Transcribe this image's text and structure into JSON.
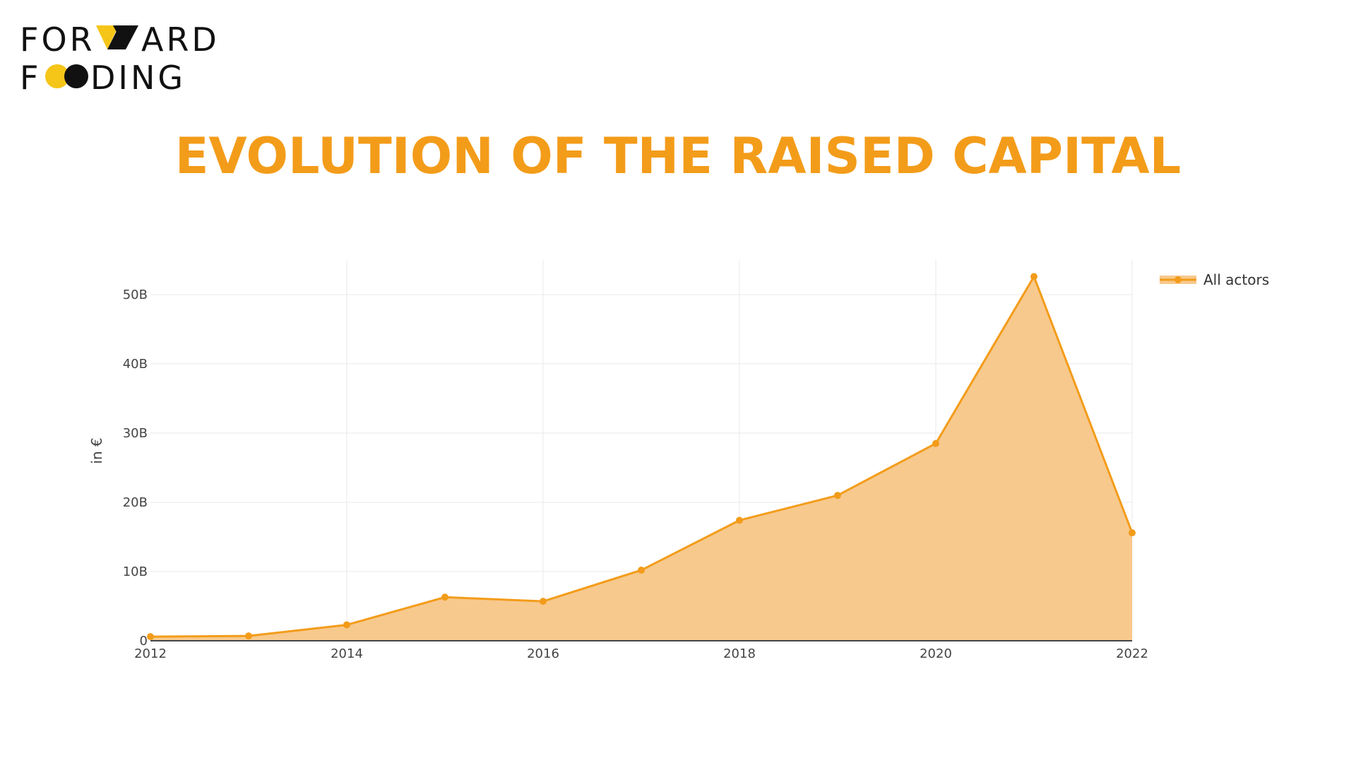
{
  "logo": {
    "line1_a": "FOR",
    "line1_b": "ARD",
    "line2_a": "F",
    "line2_b": "DING",
    "colors": {
      "yellow": "#f5c518",
      "black": "#111111"
    }
  },
  "title": "EVOLUTION OF THE RAISED CAPITAL",
  "colors": {
    "accent": "#f39c1a",
    "fill": "#f7c98d",
    "grid": "#e8e8e8",
    "axis_text": "#444444"
  },
  "chart_data": {
    "type": "area",
    "title": "",
    "xlabel": "",
    "ylabel": "in €",
    "x": [
      2012,
      2013,
      2014,
      2015,
      2016,
      2017,
      2018,
      2019,
      2020,
      2021,
      2022
    ],
    "series": [
      {
        "name": "All actors",
        "values": [
          0.6,
          0.7,
          2.3,
          6.3,
          5.7,
          10.2,
          17.4,
          21.0,
          28.5,
          52.6,
          15.6
        ]
      }
    ],
    "xlim": [
      2012,
      2022
    ],
    "ylim": [
      0,
      55
    ],
    "x_ticks": [
      "2012",
      "2014",
      "2016",
      "2018",
      "2020",
      "2022"
    ],
    "y_ticks": [
      "0",
      "10B",
      "20B",
      "30B",
      "40B",
      "50B"
    ],
    "y_tick_values": [
      0,
      10,
      20,
      30,
      40,
      50
    ],
    "value_unit": "billions",
    "grid": true,
    "legend_position": "top-right"
  }
}
